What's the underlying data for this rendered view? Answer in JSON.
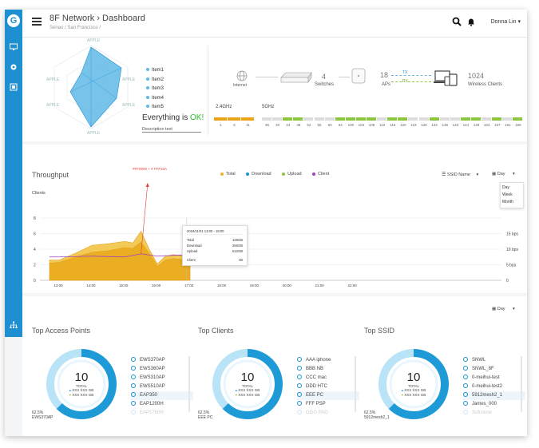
{
  "header": {
    "title": "8F Network",
    "breadcrumb_sep": "›",
    "page": "Dashboard",
    "subtitle": "Senao / San Francisco /",
    "user": "Donna Lin",
    "user_caret": "▾"
  },
  "radar": {
    "axis_labels": [
      "APPLE",
      "APPLE",
      "APPLE",
      "APPLE",
      "APPLE",
      "APPLE"
    ],
    "legend": [
      "Item1",
      "Item2",
      "Item3",
      "Item4",
      "Item5"
    ],
    "status_prefix": "Everything is",
    "status_value": "OK!",
    "description": "Description text"
  },
  "topology": {
    "internet": "Internet",
    "switches_count": "4",
    "switches_label": "Switches",
    "aps_count": "18",
    "aps_label": "APs",
    "tx_label": "TX",
    "rx_label": "RX",
    "clients_count": "1024",
    "clients_label": "Wireless Clients"
  },
  "channels": {
    "band_24": "2.4GHz",
    "band_5": "5GHz",
    "ch_24": [
      "1",
      "6",
      "11"
    ],
    "ch_5": [
      "36",
      "40",
      "44",
      "48",
      "52",
      "56",
      "60",
      "64",
      "100",
      "104",
      "108",
      "112",
      "116",
      "120",
      "124",
      "128",
      "132",
      "136",
      "140",
      "144",
      "149",
      "153",
      "157",
      "161",
      "165"
    ],
    "colors": {
      "orange": "#e8a317",
      "green": "#8cc63f",
      "grey": "#dcdcdc"
    }
  },
  "throughput": {
    "title": "Throughput",
    "marker_label": "#FF0000 + # FFF23A",
    "legend": [
      {
        "label": "Total",
        "color": "#f0b429"
      },
      {
        "label": "Download",
        "color": "#1e8fd1"
      },
      {
        "label": "Upload",
        "color": "#8cc63f"
      },
      {
        "label": "Client",
        "color": "#a03fbf"
      }
    ],
    "ssid_select": "SSID Name",
    "range_select": "Day",
    "range_options": [
      "Day",
      "Week",
      "Month"
    ],
    "left_axis_title": "Clients",
    "tooltip": {
      "time": "2018/11/01  13:00 - 18:00",
      "rows": [
        {
          "label": "Total",
          "value": "128GB"
        },
        {
          "label": "Download",
          "value": "256GB"
        },
        {
          "label": "Upload",
          "value": "512GB"
        },
        {
          "label": "Client",
          "value": "60"
        }
      ]
    }
  },
  "chart_data": {
    "type": "area",
    "x": [
      "13:00",
      "14:00",
      "15:00",
      "16:00",
      "17:00",
      "18:00",
      "19:00",
      "20:00",
      "21:00",
      "22:00"
    ],
    "ylim": [
      0,
      8
    ],
    "yticks": [
      0,
      2,
      4,
      6,
      8
    ],
    "y2_ticks": [
      "0",
      "5 bps",
      "10 bps",
      "15 bps"
    ],
    "xlabel": "",
    "ylabel": "Clients",
    "series": [
      {
        "name": "Total",
        "color": "#f2c13a",
        "x": [
          12.7,
          13.0,
          13.5,
          14.0,
          14.5,
          15.0,
          15.25,
          15.5,
          15.75,
          16.0,
          16.25,
          16.5,
          17.0
        ],
        "values": [
          2.6,
          2.6,
          3.5,
          4.5,
          4.7,
          5.0,
          4.8,
          6.3,
          4.0,
          2.1,
          3.1,
          3.3,
          3.0
        ]
      },
      {
        "name": "Download",
        "color": "#e9a91a",
        "x": [
          12.7,
          13.0,
          13.5,
          14.0,
          14.5,
          15.0,
          15.25,
          15.5,
          15.75,
          16.0,
          16.25,
          16.5,
          17.0
        ],
        "values": [
          2.2,
          2.3,
          3.0,
          3.6,
          3.8,
          4.2,
          4.1,
          4.9,
          3.5,
          1.8,
          2.6,
          2.8,
          2.5
        ]
      },
      {
        "name": "Client",
        "color": "#a03fbf",
        "x": [
          12.7,
          13.0,
          14.0,
          15.0,
          15.5,
          16.0,
          16.5,
          17.0
        ],
        "values": [
          3.0,
          3.0,
          3.1,
          3.0,
          3.4,
          3.1,
          3.2,
          3.3
        ]
      }
    ]
  },
  "bottom": {
    "range_select": "Day",
    "sections": [
      {
        "title": "Top Access Points",
        "total": "10",
        "total_label": "TOTAL",
        "line1": "XXX XXX GB",
        "line2": "XXX XXX GB",
        "pct": "62.5%",
        "pct_name": "EWS370AP",
        "items": [
          "EWS370AP",
          "EWS360AP",
          "EWS310AP",
          "EWS510AP",
          "EAP350",
          "EAP1200H",
          "EAP1750H"
        ]
      },
      {
        "title": "Top Clients",
        "total": "10",
        "total_label": "TOTAL",
        "line1": "XXX XXX GB",
        "line2": "XXX XXX GB",
        "pct": "62.5%",
        "pct_name": "EEE PC",
        "items": [
          "AAA iphone",
          "BBB NB",
          "CCC mac",
          "DDD HTC",
          "EEE PC",
          "FFF PSP",
          "GGG PAD"
        ]
      },
      {
        "title": "Top SSID",
        "total": "10",
        "total_label": "TOTAL",
        "line1": "XXX XXX GB",
        "line2": "XXX XXX GB",
        "pct": "62.5%",
        "pct_name": "5912mesh2_1",
        "items": [
          "SNWL",
          "SNWL_8F",
          "0-meihui-test",
          "0-meihui-test2",
          "5912mesh2_1",
          "James_000",
          "Sofistone"
        ]
      }
    ]
  }
}
